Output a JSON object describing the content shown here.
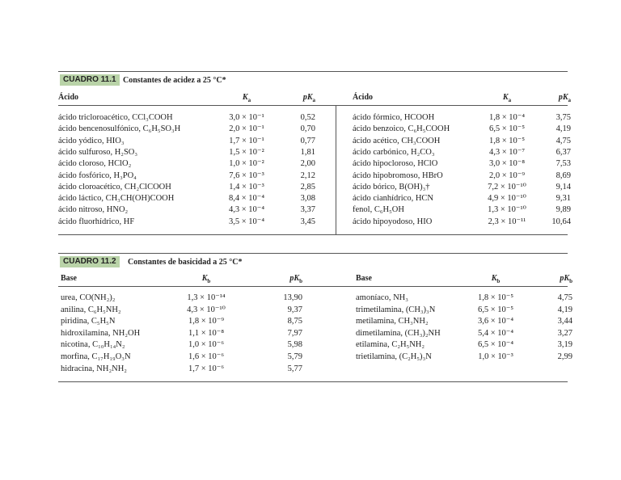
{
  "tables": [
    {
      "label": "CUADRO 11.1",
      "title": "Constantes de acidez a 25 °C*",
      "halves": [
        {
          "header": {
            "name": "Ácido",
            "k": [
              "K",
              "a"
            ],
            "pk": [
              "pK",
              "a"
            ]
          },
          "rows": [
            [
              "ácido tricloroacético, CCl₃COOH",
              "3,0 × 10⁻¹",
              "0,52"
            ],
            [
              "ácido bencenosulfónico, C₆H₅SO₃H",
              "2,0 × 10⁻¹",
              "0,70"
            ],
            [
              "ácido yódico, HIO₃",
              "1,7 × 10⁻¹",
              "0,77"
            ],
            [
              "ácido sulfuroso, H₂SO₃",
              "1,5 × 10⁻²",
              "1,81"
            ],
            [
              "ácido cloroso, HClO₂",
              "1,0 × 10⁻²",
              "2,00"
            ],
            [
              "ácido fosfórico, H₃PO₄",
              "7,6 × 10⁻³",
              "2,12"
            ],
            [
              "ácido cloroacético, CH₂ClCOOH",
              "1,4 × 10⁻³",
              "2,85"
            ],
            [
              "ácido láctico, CH₃CH(OH)COOH",
              "8,4 × 10⁻⁴",
              "3,08"
            ],
            [
              "ácido nitroso, HNO₂",
              "4,3 × 10⁻⁴",
              "3,37"
            ],
            [
              "ácido fluorhídrico, HF",
              "3,5 × 10⁻⁴",
              "3,45"
            ]
          ]
        },
        {
          "header": {
            "name": "Ácido",
            "k": [
              "K",
              "a"
            ],
            "pk": [
              "pK",
              "a"
            ]
          },
          "rows": [
            [
              "ácido fórmico, HCOOH",
              "1,8 × 10⁻⁴",
              "3,75"
            ],
            [
              "ácido benzoico, C₆H₅COOH",
              "6,5 × 10⁻⁵",
              "4,19"
            ],
            [
              "ácido acético, CH₃COOH",
              "1,8 × 10⁻⁵",
              "4,75"
            ],
            [
              "ácido carbónico, H₂CO₃",
              "4,3 × 10⁻⁷",
              "6,37"
            ],
            [
              "ácido hipocloroso, HClO",
              "3,0 × 10⁻⁸",
              "7,53"
            ],
            [
              "ácido hipobromoso, HBrO",
              "2,0 × 10⁻⁹",
              "8,69"
            ],
            [
              "ácido bórico, B(OH)₃†",
              "7,2 × 10⁻¹⁰",
              "9,14"
            ],
            [
              "ácido cianhídrico, HCN",
              "4,9 × 10⁻¹⁰",
              "9,31"
            ],
            [
              "fenol, C₆H₅OH",
              "1,3 × 10⁻¹⁰",
              "9,89"
            ],
            [
              "ácido hipoyodoso, HIO",
              "2,3 × 10⁻¹¹",
              "10,64"
            ]
          ]
        }
      ]
    },
    {
      "label": "CUADRO 11.2",
      "title": "Constantes de basicidad a 25 °C*",
      "halves": [
        {
          "header": {
            "name": "Base",
            "k": [
              "K",
              "b"
            ],
            "pk": [
              "pK",
              "b"
            ]
          },
          "rows": [
            [
              "urea, CO(NH₂)₂",
              "1,3 × 10⁻¹⁴",
              "13,90"
            ],
            [
              "anilina, C₆H₅NH₂",
              "4,3 × 10⁻¹⁰",
              "9,37"
            ],
            [
              "piridina, C₅H₅N",
              "1,8 × 10⁻⁹",
              "8,75"
            ],
            [
              "hidroxilamina, NH₂OH",
              "1,1 × 10⁻⁸",
              "7,97"
            ],
            [
              "nicotina, C₁₀H₁₄N₂",
              "1,0 × 10⁻⁶",
              "5,98"
            ],
            [
              "morfina, C₁₇H₁₉O₃N",
              "1,6 × 10⁻⁶",
              "5,79"
            ],
            [
              "hidracina, NH₂NH₂",
              "1,7 × 10⁻⁶",
              "5,77"
            ]
          ]
        },
        {
          "header": {
            "name": "Base",
            "k": [
              "K",
              "b"
            ],
            "pk": [
              "pK",
              "b"
            ]
          },
          "rows": [
            [
              "amoníaco, NH₃",
              "1,8 × 10⁻⁵",
              "4,75"
            ],
            [
              "trimetilamina, (CH₃)₃N",
              "6,5 × 10⁻⁵",
              "4,19"
            ],
            [
              "metilamina, CH₃NH₂",
              "3,6 × 10⁻⁴",
              "3,44"
            ],
            [
              "dimetilamina, (CH₃)₂NH",
              "5,4 × 10⁻⁴",
              "3,27"
            ],
            [
              "etilamina, C₂H₅NH₂",
              "6,5 × 10⁻⁴",
              "3,19"
            ],
            [
              "trietilamina, (C₂H₅)₃N",
              "1,0 × 10⁻³",
              "2,99"
            ]
          ]
        }
      ]
    }
  ]
}
